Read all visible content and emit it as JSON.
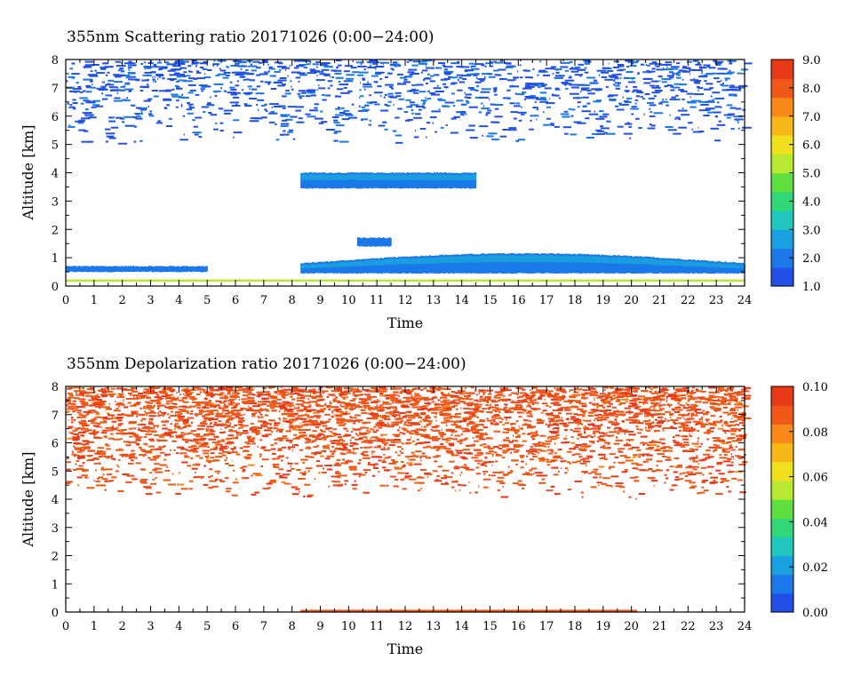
{
  "colormap": [
    "#2050e8",
    "#1a78e8",
    "#1aa0e0",
    "#20c8c0",
    "#30d878",
    "#60e040",
    "#b8e830",
    "#f0e020",
    "#f8b818",
    "#f88818",
    "#f05818",
    "#e83818"
  ],
  "chart_data": [
    {
      "type": "heatmap",
      "title": "355nm Scattering ratio  20171026 (0:00−24:00)",
      "xlabel": "Time",
      "ylabel": "Altitude [km]",
      "xlim": [
        0,
        24
      ],
      "ylim": [
        0,
        8
      ],
      "xticks": [
        "0",
        "1",
        "2",
        "3",
        "4",
        "5",
        "6",
        "7",
        "8",
        "9",
        "10",
        "11",
        "12",
        "13",
        "14",
        "15",
        "16",
        "17",
        "18",
        "19",
        "20",
        "21",
        "22",
        "23",
        "24"
      ],
      "yticks": [
        "0",
        "1",
        "2",
        "3",
        "4",
        "5",
        "6",
        "7",
        "8"
      ],
      "colorbar": {
        "range": [
          1.0,
          9.0
        ],
        "ticks": [
          "1.0",
          "2.0",
          "3.0",
          "4.0",
          "5.0",
          "6.0",
          "7.0",
          "8.0",
          "9.0"
        ]
      },
      "features": [
        {
          "kind": "boundary_layer",
          "t_start": 0,
          "t_end": 5.0,
          "alt_bottom": 0.5,
          "alt_top": 0.7,
          "value": 1.8
        },
        {
          "kind": "boundary_layer",
          "t_start": 8.3,
          "t_end": 24.0,
          "alt_bottom": 0.45,
          "alt_top": 1.15,
          "value": 1.9
        },
        {
          "kind": "cloud_layer",
          "t_start": 8.3,
          "t_end": 14.5,
          "alt_bottom": 3.45,
          "alt_top": 4.0,
          "value": 2.0
        },
        {
          "kind": "cloud_patch",
          "t_start": 10.3,
          "t_end": 11.5,
          "alt_bottom": 1.4,
          "alt_top": 1.7,
          "value": 1.8
        },
        {
          "kind": "near_surface_line",
          "t_start": 0,
          "t_end": 24,
          "alt": 0.2,
          "value": 5.5
        },
        {
          "kind": "high_scattered",
          "t_start": 0,
          "t_end": 24,
          "alt_bottom": 5.0,
          "alt_top": 8.0,
          "value": 1.5
        }
      ]
    },
    {
      "type": "heatmap",
      "title": "355nm Depolarization ratio  20171026 (0:00−24:00)",
      "xlabel": "Time",
      "ylabel": "Altitude [km]",
      "xlim": [
        0,
        24
      ],
      "ylim": [
        0,
        8
      ],
      "xticks": [
        "0",
        "1",
        "2",
        "3",
        "4",
        "5",
        "6",
        "7",
        "8",
        "9",
        "10",
        "11",
        "12",
        "13",
        "14",
        "15",
        "16",
        "17",
        "18",
        "19",
        "20",
        "21",
        "22",
        "23",
        "24"
      ],
      "yticks": [
        "0",
        "1",
        "2",
        "3",
        "4",
        "5",
        "6",
        "7",
        "8"
      ],
      "colorbar": {
        "range": [
          0.0,
          0.1
        ],
        "ticks": [
          "0.00",
          "0.02",
          "0.04",
          "0.06",
          "0.08",
          "0.10"
        ]
      },
      "features": [
        {
          "kind": "high_scattered",
          "t_start": 0,
          "t_end": 24,
          "alt_bottom": 4.0,
          "alt_top": 8.0,
          "value": 0.095
        },
        {
          "kind": "near_surface_line",
          "t_start": 8.3,
          "t_end": 20.2,
          "alt": 0.05,
          "value": 0.09
        }
      ]
    }
  ]
}
